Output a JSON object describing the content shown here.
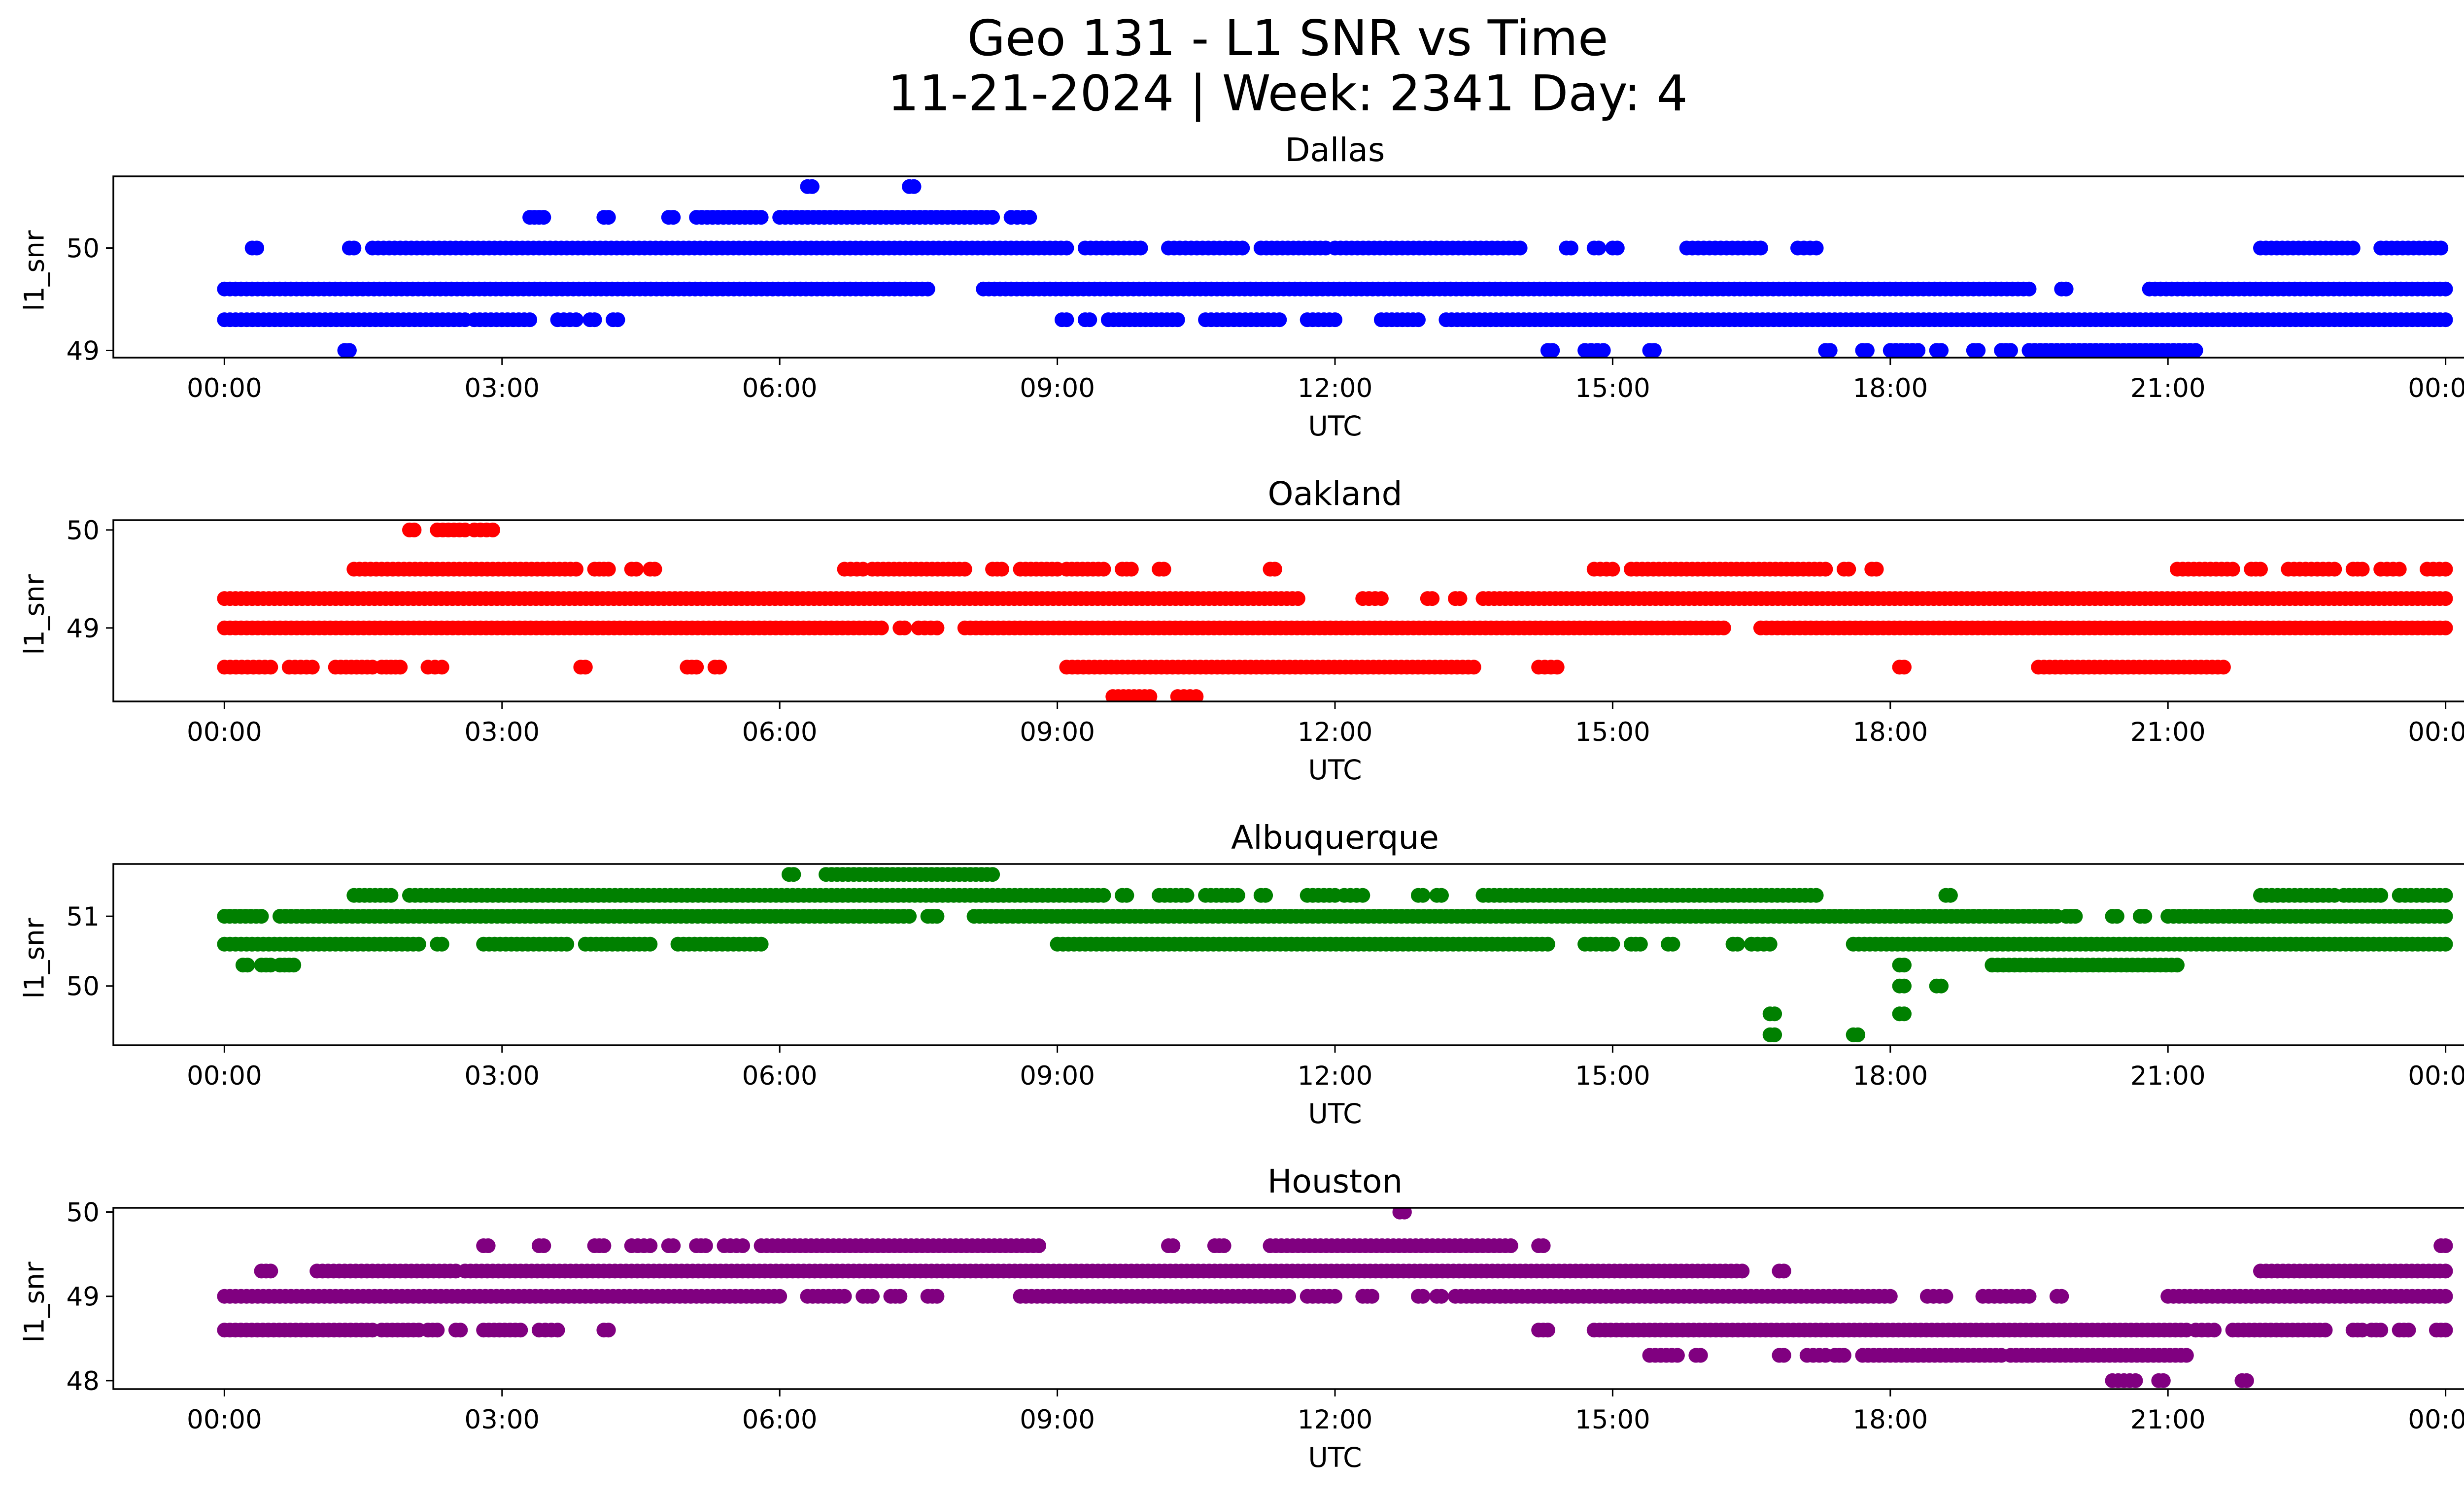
{
  "title_line1": "Geo 131 - L1 SNR vs Time",
  "title_line2": "11-21-2024 | Week: 2341 Day: 4",
  "chart_data": [
    {
      "type": "scatter",
      "title": "Dallas",
      "xlabel": "UTC",
      "ylabel": "l1_snr",
      "color": "#0000ff",
      "xlim_hours": [
        -1.2,
        25.2
      ],
      "ylim": [
        48.93,
        50.7
      ],
      "xticks": [
        "00:00",
        "03:00",
        "06:00",
        "09:00",
        "12:00",
        "15:00",
        "18:00",
        "21:00",
        "00:00"
      ],
      "yticks": [
        49,
        50
      ],
      "series": [
        {
          "y": 49.6,
          "segments": [
            [
              0.0,
              7.6
            ],
            [
              8.2,
              19.5
            ],
            [
              19.85,
              19.9
            ],
            [
              20.8,
              24.0
            ]
          ]
        },
        {
          "y": 49.3,
          "segments": [
            [
              0.0,
              2.6
            ],
            [
              2.7,
              3.3
            ],
            [
              3.6,
              3.8
            ],
            [
              3.95,
              4.0
            ],
            [
              4.2,
              4.25
            ],
            [
              9.05,
              9.1
            ],
            [
              9.3,
              9.35
            ],
            [
              9.55,
              10.3
            ],
            [
              10.6,
              11.4
            ],
            [
              11.7,
              12.0
            ],
            [
              12.5,
              12.9
            ],
            [
              13.2,
              24.0
            ]
          ]
        },
        {
          "y": 50.0,
          "segments": [
            [
              0.3,
              0.35
            ],
            [
              1.35,
              1.4
            ],
            [
              1.6,
              9.1
            ],
            [
              9.3,
              9.9
            ],
            [
              10.2,
              11.0
            ],
            [
              11.2,
              11.9
            ],
            [
              12.0,
              14.0
            ],
            [
              14.5,
              14.55
            ],
            [
              14.8,
              14.85
            ],
            [
              15.0,
              15.05
            ],
            [
              15.8,
              16.6
            ],
            [
              17.0,
              17.2
            ],
            [
              22.0,
              23.0
            ],
            [
              23.3,
              23.95
            ]
          ]
        },
        {
          "y": 50.3,
          "segments": [
            [
              3.3,
              3.45
            ],
            [
              4.1,
              4.15
            ],
            [
              4.8,
              4.85
            ],
            [
              5.1,
              5.8
            ],
            [
              6.0,
              8.3
            ],
            [
              8.5,
              8.7
            ]
          ]
        },
        {
          "y": 50.6,
          "segments": [
            [
              6.3,
              6.35
            ],
            [
              7.4,
              7.45
            ]
          ]
        },
        {
          "y": 49.0,
          "segments": [
            [
              1.3,
              1.35
            ],
            [
              14.3,
              14.35
            ],
            [
              14.7,
              14.9
            ],
            [
              15.4,
              15.45
            ],
            [
              17.3,
              17.35
            ],
            [
              17.7,
              17.75
            ],
            [
              18.0,
              18.3
            ],
            [
              18.5,
              18.55
            ],
            [
              18.9,
              18.95
            ],
            [
              19.2,
              19.3
            ],
            [
              19.5,
              21.3
            ]
          ]
        }
      ]
    },
    {
      "type": "scatter",
      "title": "Oakland",
      "xlabel": "UTC",
      "ylabel": "l1_snr",
      "color": "#ff0000",
      "xlim_hours": [
        -1.2,
        25.2
      ],
      "ylim": [
        48.25,
        50.1
      ],
      "xticks": [
        "00:00",
        "03:00",
        "06:00",
        "09:00",
        "12:00",
        "15:00",
        "18:00",
        "21:00",
        "00:00"
      ],
      "yticks": [
        49,
        50
      ],
      "series": [
        {
          "y": 49.3,
          "segments": [
            [
              0.0,
              11.6
            ],
            [
              12.3,
              12.5
            ],
            [
              13.0,
              13.05
            ],
            [
              13.3,
              13.35
            ],
            [
              13.6,
              24.0
            ]
          ]
        },
        {
          "y": 49.0,
          "segments": [
            [
              0.0,
              7.1
            ],
            [
              7.3,
              7.35
            ],
            [
              7.5,
              7.7
            ],
            [
              8.0,
              16.2
            ],
            [
              16.6,
              24.0
            ]
          ]
        },
        {
          "y": 48.6,
          "segments": [
            [
              0.0,
              0.5
            ],
            [
              0.7,
              0.95
            ],
            [
              1.2,
              1.6
            ],
            [
              1.7,
              1.75
            ],
            [
              1.8,
              1.9
            ],
            [
              2.2,
              2.35
            ],
            [
              3.85,
              3.9
            ],
            [
              5.0,
              5.1
            ],
            [
              5.3,
              5.35
            ],
            [
              9.1,
              13.5
            ],
            [
              14.2,
              14.4
            ],
            [
              18.1,
              18.15
            ],
            [
              19.6,
              21.6
            ]
          ]
        },
        {
          "y": 49.6,
          "segments": [
            [
              1.4,
              3.8
            ],
            [
              4.0,
              4.15
            ],
            [
              4.4,
              4.45
            ],
            [
              4.6,
              4.65
            ],
            [
              6.7,
              6.9
            ],
            [
              7.0,
              8.0
            ],
            [
              8.3,
              8.4
            ],
            [
              8.6,
              9.0
            ],
            [
              9.1,
              9.5
            ],
            [
              9.7,
              9.8
            ],
            [
              10.1,
              10.15
            ],
            [
              11.3,
              11.35
            ],
            [
              14.8,
              15.0
            ],
            [
              15.2,
              17.3
            ],
            [
              17.5,
              17.55
            ],
            [
              17.8,
              17.85
            ],
            [
              21.1,
              21.7
            ],
            [
              21.9,
              22.0
            ],
            [
              22.3,
              22.8
            ],
            [
              23.0,
              23.1
            ],
            [
              23.3,
              23.5
            ],
            [
              23.8,
              24.0
            ]
          ]
        },
        {
          "y": 50.0,
          "segments": [
            [
              2.0,
              2.05
            ],
            [
              2.3,
              2.6
            ],
            [
              2.7,
              2.9
            ]
          ]
        },
        {
          "y": 48.3,
          "segments": [
            [
              9.6,
              10.0
            ],
            [
              10.3,
              10.5
            ]
          ]
        }
      ]
    },
    {
      "type": "scatter",
      "title": "Albuquerque",
      "xlabel": "UTC",
      "ylabel": "l1_snr",
      "color": "#008000",
      "xlim_hours": [
        -1.2,
        25.2
      ],
      "ylim": [
        49.15,
        51.75
      ],
      "xticks": [
        "00:00",
        "03:00",
        "06:00",
        "09:00",
        "12:00",
        "15:00",
        "18:00",
        "21:00",
        "00:00"
      ],
      "yticks": [
        50,
        51
      ],
      "series": [
        {
          "y": 51.0,
          "segments": [
            [
              0.0,
              0.4
            ],
            [
              0.6,
              7.4
            ],
            [
              7.6,
              7.7
            ],
            [
              8.1,
              19.8
            ],
            [
              19.9,
              20.0
            ],
            [
              20.4,
              20.45
            ],
            [
              20.7,
              20.75
            ],
            [
              21.0,
              24.0
            ]
          ]
        },
        {
          "y": 50.6,
          "segments": [
            [
              0.0,
              2.1
            ],
            [
              2.3,
              2.35
            ],
            [
              2.8,
              3.7
            ],
            [
              3.9,
              4.6
            ],
            [
              4.9,
              5.8
            ],
            [
              9.0,
              14.3
            ],
            [
              14.7,
              15.0
            ],
            [
              15.2,
              15.3
            ],
            [
              15.6,
              15.65
            ],
            [
              16.3,
              16.35
            ],
            [
              16.5,
              16.7
            ],
            [
              17.6,
              24.0
            ]
          ]
        },
        {
          "y": 51.3,
          "segments": [
            [
              1.4,
              1.8
            ],
            [
              2.0,
              9.5
            ],
            [
              9.7,
              9.75
            ],
            [
              10.1,
              10.4
            ],
            [
              10.6,
              10.95
            ],
            [
              11.2,
              11.25
            ],
            [
              11.7,
              12.0
            ],
            [
              12.1,
              12.3
            ],
            [
              12.9,
              12.95
            ],
            [
              13.1,
              13.15
            ],
            [
              13.6,
              17.2
            ],
            [
              18.6,
              18.65
            ],
            [
              22.0,
              22.8
            ],
            [
              22.9,
              23.3
            ],
            [
              23.5,
              24.0
            ]
          ]
        },
        {
          "y": 51.6,
          "segments": [
            [
              6.1,
              6.15
            ],
            [
              6.5,
              8.3
            ]
          ]
        },
        {
          "y": 50.3,
          "segments": [
            [
              0.2,
              0.25
            ],
            [
              0.4,
              0.5
            ],
            [
              0.6,
              0.75
            ],
            [
              18.1,
              18.15
            ],
            [
              19.1,
              21.1
            ]
          ]
        },
        {
          "y": 50.0,
          "segments": [
            [
              18.1,
              18.15
            ],
            [
              18.5,
              18.55
            ]
          ]
        },
        {
          "y": 49.6,
          "segments": [
            [
              16.7,
              16.75
            ],
            [
              18.1,
              18.15
            ]
          ]
        },
        {
          "y": 49.3,
          "segments": [
            [
              16.7,
              16.75
            ],
            [
              17.6,
              17.65
            ]
          ]
        }
      ]
    },
    {
      "type": "scatter",
      "title": "Houston",
      "xlabel": "UTC",
      "ylabel": "l1_snr",
      "color": "#800080",
      "xlim_hours": [
        -1.2,
        25.2
      ],
      "ylim": [
        47.9,
        50.05
      ],
      "xticks": [
        "00:00",
        "03:00",
        "06:00",
        "09:00",
        "12:00",
        "15:00",
        "18:00",
        "21:00",
        "00:00"
      ],
      "yticks": [
        48,
        49,
        50
      ],
      "series": [
        {
          "y": 49.0,
          "segments": [
            [
              0.0,
              6.0
            ],
            [
              6.3,
              6.7
            ],
            [
              6.9,
              7.0
            ],
            [
              7.2,
              7.3
            ],
            [
              7.6,
              7.7
            ],
            [
              8.6,
              11.5
            ],
            [
              11.7,
              12.0
            ],
            [
              12.3,
              12.4
            ],
            [
              12.9,
              12.95
            ],
            [
              13.1,
              13.15
            ],
            [
              13.3,
              18.0
            ],
            [
              18.4,
              18.6
            ],
            [
              19.0,
              19.5
            ],
            [
              19.8,
              19.85
            ],
            [
              21.0,
              24.0
            ]
          ]
        },
        {
          "y": 48.6,
          "segments": [
            [
              0.0,
              1.6
            ],
            [
              1.7,
              2.1
            ],
            [
              2.2,
              2.3
            ],
            [
              2.5,
              2.55
            ],
            [
              2.8,
              3.2
            ],
            [
              3.4,
              3.6
            ],
            [
              4.1,
              4.15
            ],
            [
              14.2,
              14.3
            ],
            [
              14.8,
              21.2
            ],
            [
              21.3,
              21.5
            ],
            [
              21.7,
              22.7
            ],
            [
              23.0,
              23.1
            ],
            [
              23.2,
              23.3
            ],
            [
              23.5,
              23.6
            ],
            [
              23.9,
              24.0
            ]
          ]
        },
        {
          "y": 49.3,
          "segments": [
            [
              0.4,
              0.5
            ],
            [
              1.0,
              2.5
            ],
            [
              2.6,
              16.4
            ],
            [
              16.8,
              16.85
            ],
            [
              22.0,
              24.0
            ]
          ]
        },
        {
          "y": 49.6,
          "segments": [
            [
              2.8,
              2.85
            ],
            [
              3.4,
              3.45
            ],
            [
              4.0,
              4.1
            ],
            [
              4.4,
              4.6
            ],
            [
              4.8,
              4.85
            ],
            [
              5.1,
              5.2
            ],
            [
              5.4,
              5.6
            ],
            [
              5.8,
              8.8
            ],
            [
              10.2,
              10.25
            ],
            [
              10.7,
              10.8
            ],
            [
              11.3,
              13.9
            ],
            [
              14.2,
              14.25
            ],
            [
              23.95,
              24.0
            ]
          ]
        },
        {
          "y": 48.3,
          "segments": [
            [
              15.4,
              15.7
            ],
            [
              15.9,
              15.95
            ],
            [
              16.8,
              16.85
            ],
            [
              17.1,
              17.3
            ],
            [
              17.4,
              17.5
            ],
            [
              17.7,
              19.2
            ],
            [
              19.3,
              21.2
            ]
          ]
        },
        {
          "y": 50.0,
          "segments": [
            [
              12.7,
              12.75
            ]
          ]
        },
        {
          "y": 48.0,
          "segments": [
            [
              20.4,
              20.65
            ],
            [
              20.9,
              20.95
            ],
            [
              21.8,
              21.85
            ]
          ]
        }
      ]
    }
  ]
}
